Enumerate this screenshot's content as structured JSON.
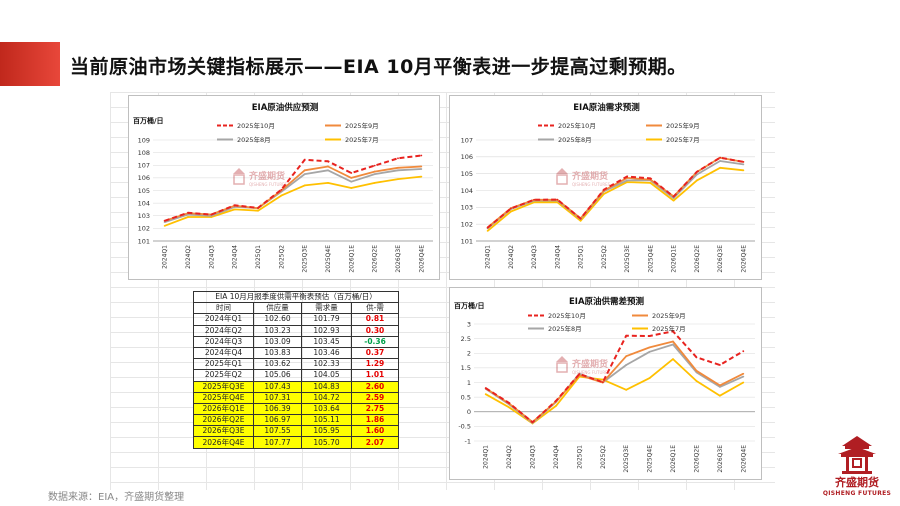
{
  "slide": {
    "title": "当前原油市场关键指标展示——EIA 10月平衡表进一步提高过剩预期。",
    "source": "数据来源：EIA，齐盛期货整理",
    "accent": "#e8473a"
  },
  "logo": {
    "name": "齐盛期货",
    "sub": "QISHENG FUTURES"
  },
  "watermark": {
    "name": "齐盛期货",
    "sub": "QISHENG FUTURES"
  },
  "colors": {
    "oct": "#e8231f",
    "sep": "#f08a3c",
    "aug": "#a6a6a6",
    "jul": "#ffc000"
  },
  "chart_data": [
    {
      "id": "supply",
      "type": "line",
      "title": "EIA原油供应预测",
      "ylabel": "百万桶/日",
      "categories": [
        "2024Q1",
        "2024Q2",
        "2024Q3",
        "2024Q4",
        "2025Q1",
        "2025Q2",
        "2025Q3E",
        "2025Q4E",
        "2026Q1E",
        "2026Q2E",
        "2026Q3E",
        "2026Q4E"
      ],
      "ylim": [
        101,
        109
      ],
      "yticks": [
        101,
        102,
        103,
        104,
        105,
        106,
        107,
        108,
        109
      ],
      "series": [
        {
          "name": "2025年10月",
          "key": "oct",
          "dash": true,
          "values": [
            102.6,
            103.23,
            103.09,
            103.83,
            103.62,
            105.06,
            107.43,
            107.31,
            106.39,
            106.97,
            107.55,
            107.77
          ]
        },
        {
          "name": "2025年9月",
          "key": "sep",
          "dash": false,
          "values": [
            102.6,
            103.2,
            103.1,
            103.8,
            103.6,
            105.0,
            106.6,
            106.9,
            106.0,
            106.5,
            106.8,
            106.9
          ]
        },
        {
          "name": "2025年8月",
          "key": "aug",
          "dash": false,
          "values": [
            102.5,
            103.1,
            103.0,
            103.7,
            103.6,
            104.9,
            106.3,
            106.6,
            105.7,
            106.3,
            106.6,
            106.7
          ]
        },
        {
          "name": "2025年7月",
          "key": "jul",
          "dash": false,
          "values": [
            102.2,
            102.9,
            102.9,
            103.5,
            103.4,
            104.6,
            105.4,
            105.6,
            105.2,
            105.6,
            105.9,
            106.1
          ]
        }
      ]
    },
    {
      "id": "demand",
      "type": "line",
      "title": "EIA原油需求预测",
      "ylabel": "",
      "categories": [
        "2024Q1",
        "2024Q2",
        "2024Q3",
        "2024Q4",
        "2025Q1",
        "2025Q2",
        "2025Q3E",
        "2025Q4E",
        "2026Q1E",
        "2026Q2E",
        "2026Q3E",
        "2026Q4E"
      ],
      "ylim": [
        101,
        107
      ],
      "yticks": [
        101,
        102,
        103,
        104,
        105,
        106,
        107
      ],
      "series": [
        {
          "name": "2025年10月",
          "key": "oct",
          "dash": true,
          "values": [
            101.79,
            102.93,
            103.45,
            103.46,
            102.33,
            104.05,
            104.83,
            104.72,
            103.64,
            105.11,
            105.95,
            105.7
          ]
        },
        {
          "name": "2025年9月",
          "key": "sep",
          "dash": false,
          "values": [
            101.8,
            102.95,
            103.45,
            103.45,
            102.35,
            104.0,
            104.75,
            104.65,
            103.65,
            105.1,
            105.95,
            105.7
          ]
        },
        {
          "name": "2025年8月",
          "key": "aug",
          "dash": false,
          "values": [
            101.75,
            102.9,
            103.4,
            103.4,
            102.3,
            103.95,
            104.6,
            104.6,
            103.55,
            104.95,
            105.75,
            105.55
          ]
        },
        {
          "name": "2025年7月",
          "key": "jul",
          "dash": false,
          "values": [
            101.6,
            102.75,
            103.3,
            103.3,
            102.2,
            103.8,
            104.5,
            104.45,
            103.4,
            104.6,
            105.35,
            105.2
          ]
        }
      ]
    },
    {
      "id": "balance",
      "type": "line",
      "title": "EIA原油供需差预测",
      "ylabel": "百万桶/日",
      "categories": [
        "2024Q1",
        "2024Q2",
        "2024Q3",
        "2024Q4",
        "2025Q1",
        "2025Q2",
        "2025Q3E",
        "2025Q4E",
        "2026Q1E",
        "2026Q2E",
        "2026Q3E",
        "2026Q4E"
      ],
      "ylim": [
        -1,
        3
      ],
      "yticks": [
        -1,
        -0.5,
        0,
        0.5,
        1,
        1.5,
        2,
        2.5,
        3
      ],
      "series": [
        {
          "name": "2025年10月",
          "key": "oct",
          "dash": true,
          "values": [
            0.81,
            0.3,
            -0.36,
            0.37,
            1.29,
            1.01,
            2.6,
            2.59,
            2.75,
            1.86,
            1.6,
            2.07
          ]
        },
        {
          "name": "2025年9月",
          "key": "sep",
          "dash": false,
          "values": [
            0.8,
            0.28,
            -0.35,
            0.35,
            1.25,
            1.0,
            1.9,
            2.2,
            2.4,
            1.4,
            0.9,
            1.3
          ]
        },
        {
          "name": "2025年8月",
          "key": "aug",
          "dash": false,
          "values": [
            0.78,
            0.25,
            -0.38,
            0.33,
            1.3,
            1.0,
            1.6,
            2.05,
            2.3,
            1.35,
            0.85,
            1.2
          ]
        },
        {
          "name": "2025年7月",
          "key": "jul",
          "dash": false,
          "values": [
            0.6,
            0.15,
            -0.4,
            0.2,
            1.2,
            1.1,
            0.75,
            1.15,
            1.8,
            1.05,
            0.55,
            1.0
          ]
        }
      ]
    }
  ],
  "table": {
    "caption": "EIA 10月月报季度供需平衡表预估（百万桶/日）",
    "headers": [
      "时间",
      "供应量",
      "需求量",
      "供-需"
    ],
    "rows": [
      {
        "time": "2024年Q1",
        "supply": "102.60",
        "demand": "101.79",
        "bal": "0.81",
        "hl": false,
        "neg": false
      },
      {
        "time": "2024年Q2",
        "supply": "103.23",
        "demand": "102.93",
        "bal": "0.30",
        "hl": false,
        "neg": false
      },
      {
        "time": "2024年Q3",
        "supply": "103.09",
        "demand": "103.45",
        "bal": "-0.36",
        "hl": false,
        "neg": true
      },
      {
        "time": "2024年Q4",
        "supply": "103.83",
        "demand": "103.46",
        "bal": "0.37",
        "hl": false,
        "neg": false
      },
      {
        "time": "2025年Q1",
        "supply": "103.62",
        "demand": "102.33",
        "bal": "1.29",
        "hl": false,
        "neg": false
      },
      {
        "time": "2025年Q2",
        "supply": "105.06",
        "demand": "104.05",
        "bal": "1.01",
        "hl": false,
        "neg": false
      },
      {
        "time": "2025年Q3E",
        "supply": "107.43",
        "demand": "104.83",
        "bal": "2.60",
        "hl": true,
        "neg": false
      },
      {
        "time": "2025年Q4E",
        "supply": "107.31",
        "demand": "104.72",
        "bal": "2.59",
        "hl": true,
        "neg": false
      },
      {
        "time": "2026年Q1E",
        "supply": "106.39",
        "demand": "103.64",
        "bal": "2.75",
        "hl": true,
        "neg": false
      },
      {
        "time": "2026年Q2E",
        "supply": "106.97",
        "demand": "105.11",
        "bal": "1.86",
        "hl": true,
        "neg": false
      },
      {
        "time": "2026年Q3E",
        "supply": "107.55",
        "demand": "105.95",
        "bal": "1.60",
        "hl": true,
        "neg": false
      },
      {
        "time": "2026年Q4E",
        "supply": "107.77",
        "demand": "105.70",
        "bal": "2.07",
        "hl": true,
        "neg": false
      }
    ]
  }
}
